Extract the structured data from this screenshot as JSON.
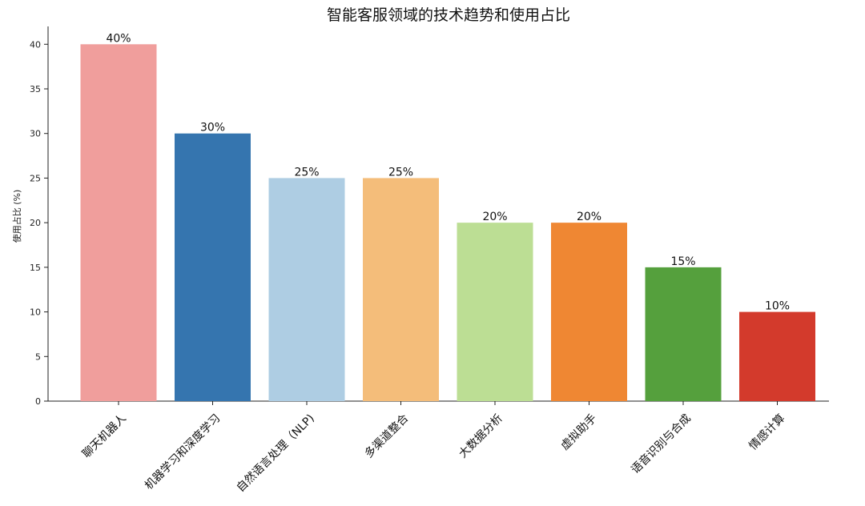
{
  "chart_data": {
    "type": "bar",
    "title": "智能客服领域的技术趋势和使用占比",
    "xlabel": "",
    "ylabel": "使用占比 (%)",
    "ylim": [
      0,
      42
    ],
    "yticks": [
      0,
      5,
      10,
      15,
      20,
      25,
      30,
      35,
      40
    ],
    "categories": [
      "聊天机器人",
      "机器学习和深度学习",
      "自然语言处理（NLP)",
      "多渠道整合",
      "大数据分析",
      "虚拟助手",
      "语音识别与合成",
      "情感计算"
    ],
    "values": [
      40,
      30,
      25,
      25,
      20,
      20,
      15,
      10
    ],
    "data_labels": [
      "40%",
      "30%",
      "25%",
      "25%",
      "20%",
      "20%",
      "15%",
      "10%"
    ],
    "colors": [
      "#f09e9c",
      "#3575af",
      "#aecde3",
      "#f4bd7a",
      "#bcde94",
      "#ef8733",
      "#55a03d",
      "#d33a2c"
    ],
    "grid": false,
    "legend": "none"
  }
}
